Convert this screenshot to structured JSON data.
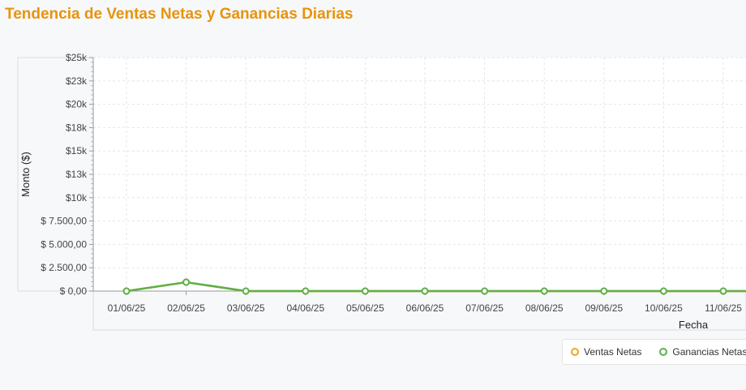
{
  "page": {
    "title": "Tendencia de Ventas Netas y Ganancias Diarias"
  },
  "chart_data": {
    "type": "line",
    "title": "Tendencia de Ventas Netas y Ganancias Diarias",
    "xlabel": "Fecha",
    "ylabel": "Monto ($)",
    "x": [
      "01/06/25",
      "02/06/25",
      "03/06/25",
      "04/06/25",
      "05/06/25",
      "06/06/25",
      "07/06/25",
      "08/06/25",
      "09/06/25",
      "10/06/25",
      "11/06/25"
    ],
    "ylim": [
      0,
      25000
    ],
    "yticks": [
      {
        "value": 0,
        "label": "$ 0,00"
      },
      {
        "value": 2500,
        "label": "$ 2.500,00"
      },
      {
        "value": 5000,
        "label": "$ 5.000,00"
      },
      {
        "value": 7500,
        "label": "$ 7.500,00"
      },
      {
        "value": 10000,
        "label": "$10k"
      },
      {
        "value": 12500,
        "label": "$13k"
      },
      {
        "value": 15000,
        "label": "$15k"
      },
      {
        "value": 17500,
        "label": "$18k"
      },
      {
        "value": 20000,
        "label": "$20k"
      },
      {
        "value": 22500,
        "label": "$23k"
      },
      {
        "value": 25000,
        "label": "$25k"
      }
    ],
    "grid": true,
    "legend_position": "bottom-right",
    "series": [
      {
        "name": "Ventas Netas",
        "color": "#f0a51e",
        "values": [
          0,
          950,
          0,
          0,
          0,
          0,
          0,
          0,
          0,
          0,
          0
        ]
      },
      {
        "name": "Ganancias Netas",
        "color": "#5cb04a",
        "values": [
          0,
          950,
          0,
          0,
          0,
          0,
          0,
          0,
          0,
          0,
          0
        ]
      }
    ]
  }
}
